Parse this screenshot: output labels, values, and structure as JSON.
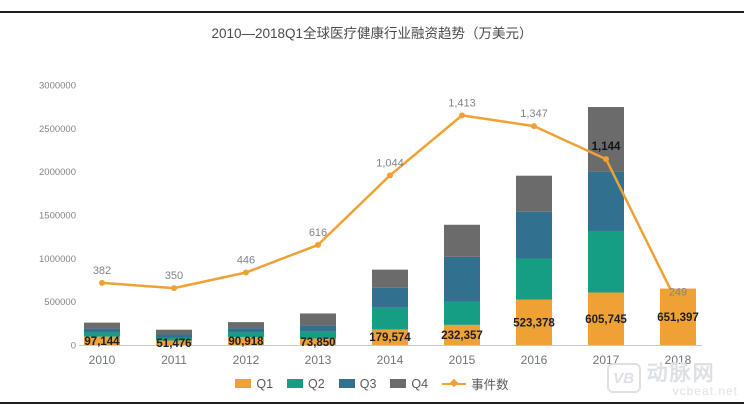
{
  "title": "2010—2018Q1全球医疗健康行业融资趋势（万美元）",
  "chart_data": {
    "type": "bar",
    "subtype": "stacked-bar-with-line",
    "title": "2010—2018Q1全球医疗健康行业融资趋势（万美元）",
    "categories": [
      "2010",
      "2011",
      "2012",
      "2013",
      "2014",
      "2015",
      "2016",
      "2017",
      "2018"
    ],
    "stacked": true,
    "grid": false,
    "legend_position": "bottom",
    "series": [
      {
        "name": "Q1",
        "color": "#EFA134",
        "values": [
          97144,
          51476,
          90918,
          73850,
          179574,
          232357,
          523378,
          605745,
          651397
        ],
        "labels": [
          "97,144",
          "51,476",
          "90,918",
          "73,850",
          "179,574",
          "232,357",
          "523,378",
          "605,745",
          "651,397"
        ]
      },
      {
        "name": "Q2",
        "color": "#169E84",
        "values": [
          46000,
          30000,
          52000,
          80000,
          250000,
          265000,
          475000,
          710000,
          0
        ],
        "note": "values estimated from bar pixel heights; only Q1 labeled in source"
      },
      {
        "name": "Q3",
        "color": "#31708F",
        "values": [
          46000,
          40000,
          52000,
          70000,
          230000,
          520000,
          540000,
          685000,
          0
        ],
        "note": "values estimated from bar pixel heights; only Q1 labeled in source"
      },
      {
        "name": "Q4",
        "color": "#6B6B6B",
        "values": [
          69000,
          55000,
          69000,
          140000,
          210000,
          370000,
          415000,
          745000,
          0
        ],
        "note": "values estimated from bar pixel heights; only Q1 labeled in source"
      }
    ],
    "line_series": {
      "name": "事件数",
      "color": "#EFA134",
      "values": [
        382,
        350,
        446,
        616,
        1044,
        1413,
        1347,
        1144,
        249
      ],
      "labels": [
        "382",
        "350",
        "446",
        "616",
        "1,044",
        "1,413",
        "1,347",
        "1,144",
        "249"
      ],
      "emphasized_label": "1,144"
    },
    "y_axis": {
      "ticks": [
        0,
        500000,
        1000000,
        1500000,
        2000000,
        2500000,
        3000000
      ],
      "max": 3000000
    },
    "y2_axis": {
      "max": 1600,
      "visible": false
    }
  },
  "watermark": {
    "logo": "VB",
    "brand": "动脉网",
    "domain": "vcbeat.net"
  },
  "colors": {
    "frame": "#1F1F1F",
    "title": "#4A4A4A",
    "axis_text": "#7F8489",
    "baseline": "#C9C9C9",
    "bar_label": "#1B1E28",
    "line_label": "#7F8489"
  }
}
